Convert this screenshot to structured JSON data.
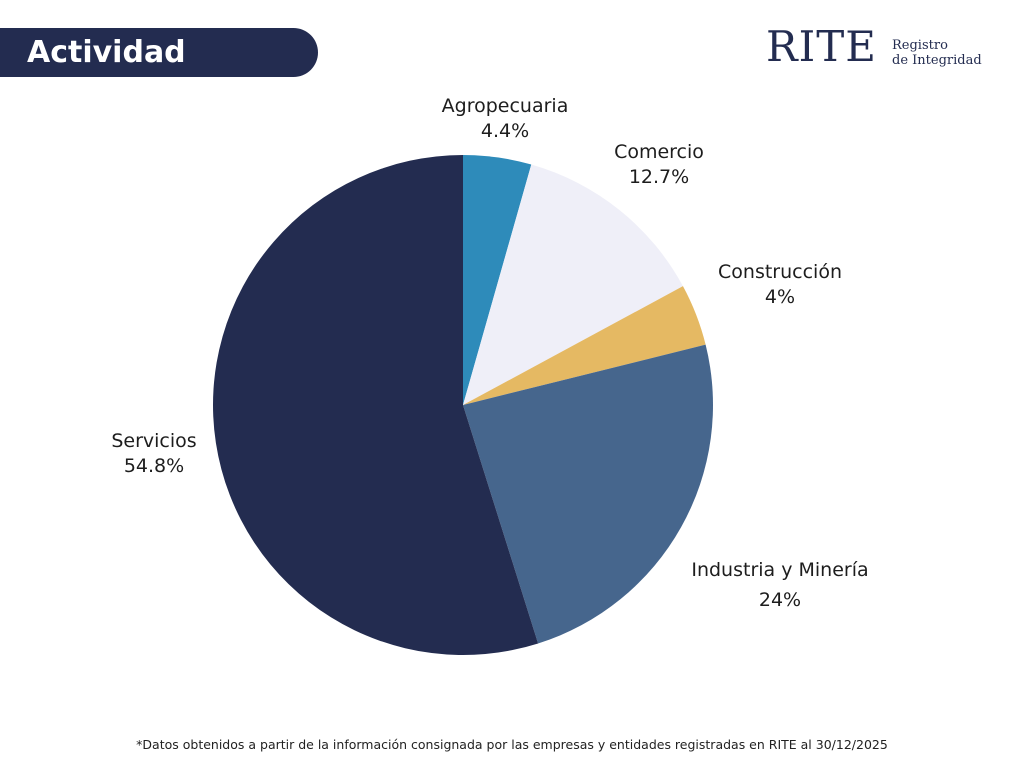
{
  "header": {
    "title": "Actividad"
  },
  "logo": {
    "name": "RITE",
    "line1": "Registro",
    "line2": "de Integridad"
  },
  "chart_data": {
    "type": "pie",
    "start": "top",
    "direction": "clockwise",
    "categories": [
      "Agropecuaria",
      "Comercio",
      "Construcción",
      "Industria y Minería",
      "Servicios"
    ],
    "values": [
      4.4,
      12.7,
      4,
      24,
      54.8
    ],
    "labels": [
      "4.4%",
      "12.7%",
      "4%",
      "24%",
      "54.8%"
    ],
    "colors": [
      "#2e8bba",
      "#efeff8",
      "#e5b963",
      "#46668d",
      "#232c50"
    ]
  },
  "footnote": "*Datos obtenidos a partir de la información consignada por las empresas y entidades registradas en RITE al 30/12/2025"
}
